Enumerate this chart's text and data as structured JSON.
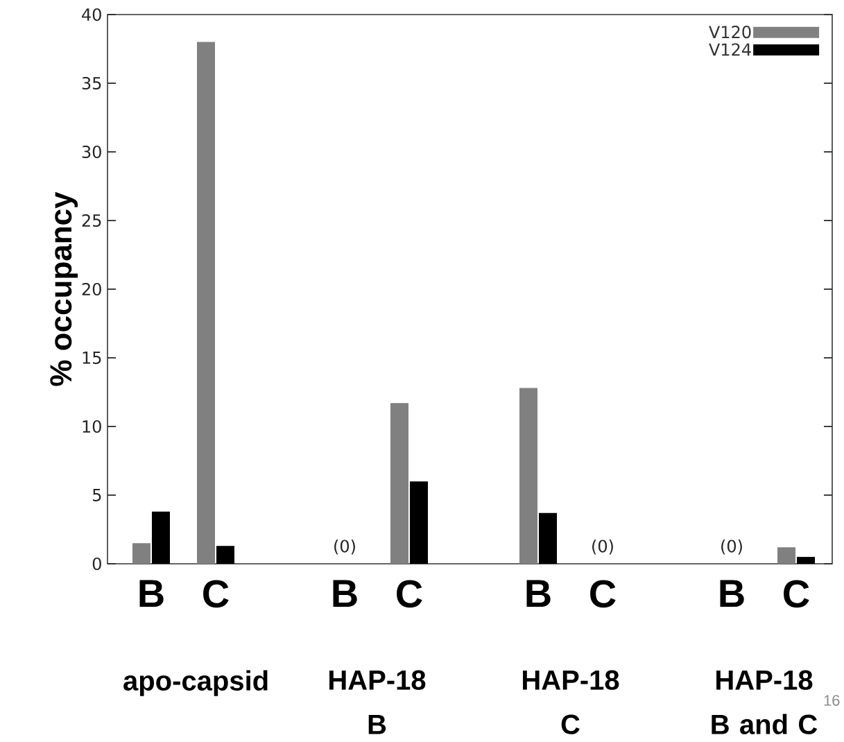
{
  "chart_data": {
    "type": "bar",
    "ylabel": "% occupancy",
    "categories": [
      "B",
      "C",
      null,
      "B",
      "C",
      null,
      "B",
      "C",
      null,
      "B",
      "C"
    ],
    "series": [
      {
        "name": "V120",
        "color": "#808080",
        "values": [
          1.5,
          38,
          null,
          0,
          11.7,
          null,
          12.8,
          0,
          null,
          0,
          1.2
        ],
        "value_labels": [
          null,
          null,
          null,
          "(0)",
          null,
          null,
          null,
          "(0)",
          null,
          "(0)",
          null
        ]
      },
      {
        "name": "V124",
        "color": "#000000",
        "values": [
          3.8,
          1.3,
          null,
          0,
          6.0,
          null,
          3.7,
          0,
          null,
          0,
          0.5
        ]
      }
    ],
    "ylim": [
      0,
      40
    ],
    "yticks": [
      0,
      5,
      10,
      15,
      20,
      25,
      30,
      35,
      40
    ],
    "legend": "top right",
    "grid": false,
    "annotations": [
      "apo-capsid",
      "HAP-18 B",
      "HAP-18 C",
      "HAP-18 B and C",
      "16"
    ]
  }
}
